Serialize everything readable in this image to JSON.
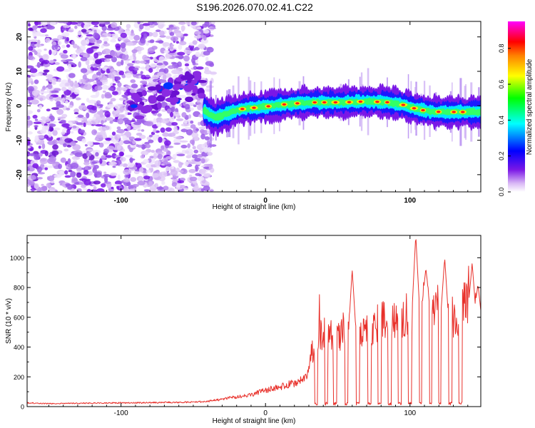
{
  "figure": {
    "title": "S196.2026.070.02.41.C22"
  },
  "chart_data": [
    {
      "type": "heatmap",
      "title": "S196.2026.070.02.41.C22",
      "xlabel": "Height of straight line (km)",
      "ylabel": "Frequency (Hz)",
      "xlim": [
        -165,
        149
      ],
      "ylim": [
        -25,
        24.5
      ],
      "xticks": [
        -100,
        0,
        100
      ],
      "xtick_labels": [
        "-100",
        "0",
        "100"
      ],
      "yticks": [
        20,
        10,
        0,
        -10,
        -20
      ],
      "ytick_labels": [
        "20",
        "10",
        "0",
        "-10",
        "-20"
      ],
      "colorbar": {
        "label": "Normalized spectral amplitude",
        "range": [
          0,
          0.95
        ],
        "ticks": [
          0.0,
          0.2,
          0.4,
          0.6,
          0.8
        ],
        "tick_labels": [
          "0.0",
          "0.2",
          "0.4",
          "0.6",
          "0.8"
        ],
        "colormap": [
          "#ffffff",
          "#d9b8f5",
          "#7a17e6",
          "#0000ff",
          "#00ffff",
          "#00ff00",
          "#ffff00",
          "#ff0000",
          "#ff00ff"
        ]
      },
      "noise_region_x": [
        -165,
        -42
      ],
      "ridge": {
        "description_points_x": [
          -42,
          -35,
          -25,
          -15,
          -5,
          5,
          15,
          25,
          35,
          45,
          55,
          65,
          75,
          85,
          95,
          105,
          115,
          125,
          135,
          149
        ],
        "description_points_freq_hz": [
          -1.5,
          -3.5,
          -2.0,
          -0.8,
          -0.5,
          0.0,
          0.5,
          0.8,
          1.0,
          1.0,
          1.0,
          1.2,
          1.2,
          1.0,
          0.3,
          -1.0,
          -1.7,
          -1.8,
          -1.8,
          -1.8
        ]
      }
    },
    {
      "type": "line",
      "xlabel": "Height of straight line (km)",
      "ylabel": "SNR (10 * v/v)",
      "xlim": [
        -165,
        149
      ],
      "ylim": [
        0,
        1150
      ],
      "xticks": [
        -100,
        0,
        100
      ],
      "xtick_labels": [
        "-100",
        "0",
        "100"
      ],
      "yticks": [
        0,
        200,
        400,
        600,
        800,
        1000
      ],
      "ytick_labels": [
        "0",
        "200",
        "400",
        "600",
        "800",
        "1000"
      ],
      "series": [
        {
          "name": "SNR",
          "color": "#e8302a",
          "x": [
            -165,
            -150,
            -130,
            -110,
            -90,
            -70,
            -50,
            -40,
            -30,
            -20,
            -10,
            0,
            10,
            20,
            28,
            32,
            40,
            50,
            60,
            70,
            80,
            90,
            100,
            110,
            120,
            130,
            140,
            149
          ],
          "y": [
            25,
            20,
            22,
            25,
            25,
            28,
            30,
            35,
            50,
            65,
            80,
            110,
            130,
            160,
            200,
            380,
            500,
            450,
            520,
            500,
            600,
            560,
            650,
            700,
            650,
            600,
            700,
            600
          ],
          "spikes": [
            {
              "x": 60,
              "y": 920
            },
            {
              "x": 104,
              "y": 1150
            },
            {
              "x": 111,
              "y": 930
            },
            {
              "x": 124,
              "y": 1000
            },
            {
              "x": 143,
              "y": 960
            },
            {
              "x": 147,
              "y": 820
            }
          ],
          "dips": [
            35,
            42,
            48,
            56,
            64,
            72,
            79,
            86,
            93,
            100,
            107,
            114,
            121,
            128,
            135,
            142
          ]
        }
      ]
    }
  ]
}
